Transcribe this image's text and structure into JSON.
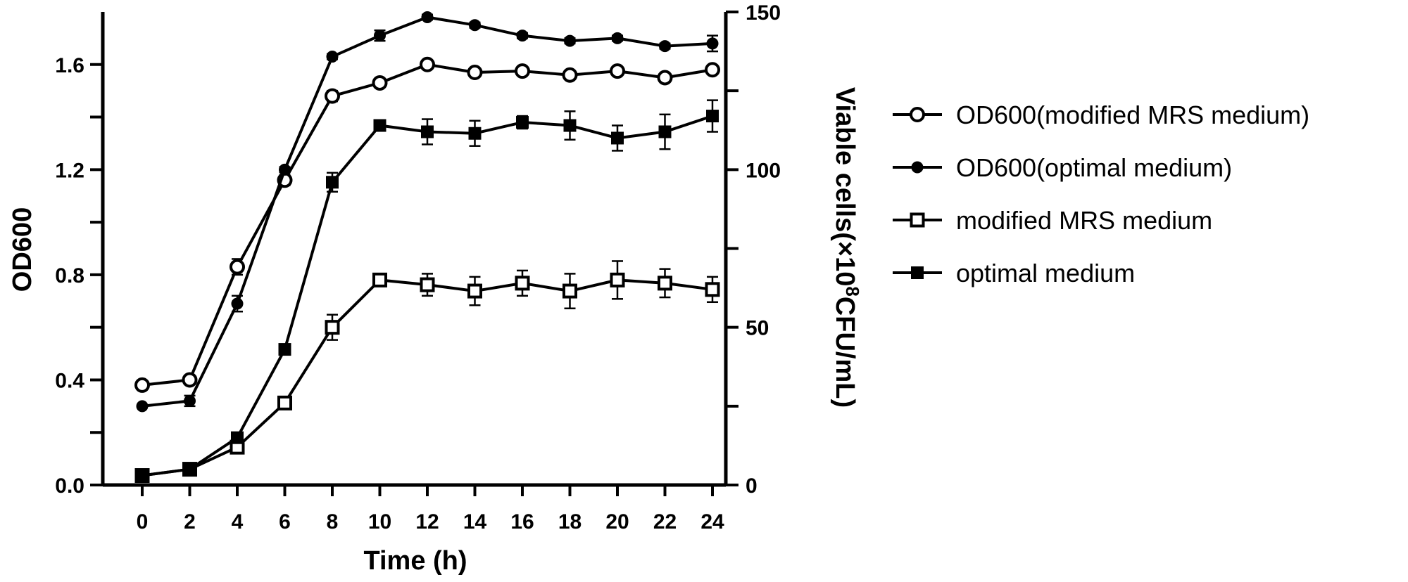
{
  "chart_data": {
    "type": "line",
    "x": [
      0,
      2,
      4,
      6,
      8,
      10,
      12,
      14,
      16,
      18,
      20,
      22,
      24
    ],
    "xlabel": "Time (h)",
    "x_ticks": [
      "0",
      "2",
      "4",
      "6",
      "8",
      "10",
      "12",
      "14",
      "16",
      "18",
      "20",
      "22",
      "24"
    ],
    "xlim": [
      -0.5,
      24.8
    ],
    "ylabel_left": "OD600",
    "ylim_left": [
      0,
      1.8
    ],
    "y_ticks_left": [
      "0.0",
      "0.4",
      "0.8",
      "1.2",
      "1.6"
    ],
    "ylabel_right_parts": [
      "Viable cells(×10",
      "8",
      "CFU/mL)"
    ],
    "ylim_right": [
      0,
      150
    ],
    "y_ticks_right": [
      "0",
      "50",
      "100",
      "150"
    ],
    "grid": false,
    "legend_position": "right",
    "series": [
      {
        "name": "OD600(modified MRS medium)",
        "axis": "left",
        "marker": "circle-open",
        "values": [
          0.38,
          0.4,
          0.83,
          1.16,
          1.48,
          1.53,
          1.6,
          1.57,
          1.575,
          1.56,
          1.575,
          1.55,
          1.58
        ],
        "errors": [
          0,
          0.01,
          0.03,
          0.02,
          0.02,
          0.01,
          0.01,
          0.01,
          0.01,
          0.01,
          0.01,
          0.01,
          0.01
        ]
      },
      {
        "name": "OD600(optimal medium)",
        "axis": "left",
        "marker": "circle-filled",
        "values": [
          0.3,
          0.32,
          0.69,
          1.2,
          1.63,
          1.71,
          1.78,
          1.75,
          1.71,
          1.69,
          1.7,
          1.67,
          1.68
        ],
        "errors": [
          0,
          0.02,
          0.03,
          0.01,
          0.01,
          0.02,
          0.01,
          0.01,
          0.01,
          0.01,
          0.01,
          0.01,
          0.03
        ]
      },
      {
        "name": "modified MRS medium",
        "axis": "right",
        "marker": "square-open",
        "values": [
          3,
          5,
          12,
          26,
          50,
          65,
          63.5,
          61.5,
          64,
          61.5,
          65,
          64,
          62
        ],
        "errors": [
          0,
          0.5,
          1,
          1.5,
          4,
          0.5,
          3.5,
          4.5,
          4,
          5.5,
          6,
          4.5,
          4
        ]
      },
      {
        "name": "optimal medium",
        "axis": "right",
        "marker": "square-filled",
        "values": [
          3,
          5,
          15,
          43,
          96,
          114,
          112,
          111.5,
          115,
          114,
          110,
          112,
          117
        ],
        "errors": [
          0,
          0.5,
          0.5,
          1,
          3,
          1.5,
          4,
          4,
          2,
          4.5,
          4,
          5.5,
          5
        ]
      }
    ]
  }
}
